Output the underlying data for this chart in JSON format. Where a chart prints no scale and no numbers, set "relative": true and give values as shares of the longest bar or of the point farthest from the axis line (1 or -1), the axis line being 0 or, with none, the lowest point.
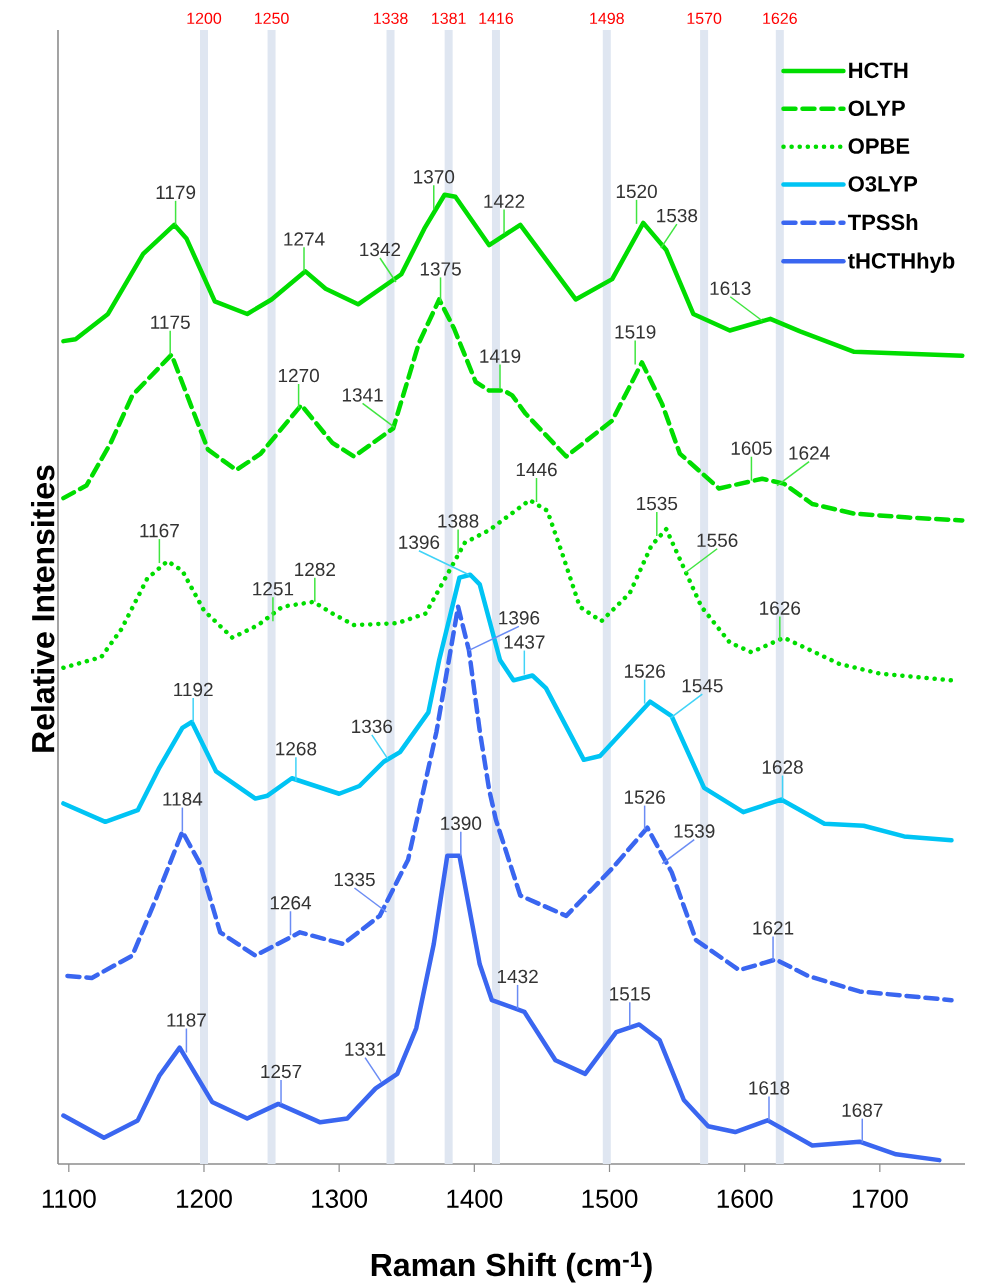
{
  "chart_data": {
    "type": "line",
    "relative": true,
    "xlabel": "Raman Shift (cm$^{-1}$)",
    "ylabel": "Relative Intensities",
    "xlim": [
      1092,
      1763
    ],
    "xticks": [
      1100,
      1200,
      1300,
      1400,
      1500,
      1600,
      1700
    ],
    "legend": "top right",
    "series": [
      {
        "name": "HCTH",
        "color": "#00dd00",
        "line_style": "solid",
        "x": [
          1096,
          1105,
          1129,
          1155,
          1178,
          1187,
          1208,
          1232,
          1250,
          1275,
          1290,
          1314,
          1346,
          1363,
          1378,
          1386,
          1411,
          1434,
          1475,
          1502,
          1525,
          1542,
          1562,
          1589,
          1619,
          1641,
          1681,
          1721,
          1761
        ],
        "values": [
          0.849,
          0.851,
          0.877,
          0.939,
          0.969,
          0.955,
          0.89,
          0.877,
          0.892,
          0.921,
          0.903,
          0.887,
          0.918,
          0.965,
          1.0,
          0.998,
          0.948,
          0.969,
          0.892,
          0.913,
          0.971,
          0.943,
          0.877,
          0.86,
          0.872,
          0.859,
          0.838,
          0.836,
          0.834
        ]
      },
      {
        "name": "OLYP",
        "color": "#00dd00",
        "line_style": "dashed",
        "x": [
          1096,
          1113,
          1131,
          1147,
          1176,
          1190,
          1203,
          1224,
          1242,
          1272,
          1295,
          1311,
          1340,
          1359,
          1374,
          1385,
          1401,
          1411,
          1422,
          1428,
          1438,
          1468,
          1502,
          1524,
          1539,
          1552,
          1581,
          1613,
          1629,
          1650,
          1681,
          1721,
          1761
        ],
        "values": [
          0.687,
          0.7,
          0.744,
          0.793,
          0.835,
          0.784,
          0.737,
          0.716,
          0.733,
          0.783,
          0.744,
          0.73,
          0.759,
          0.847,
          0.892,
          0.862,
          0.807,
          0.798,
          0.798,
          0.793,
          0.774,
          0.73,
          0.767,
          0.827,
          0.784,
          0.733,
          0.697,
          0.707,
          0.702,
          0.681,
          0.671,
          0.667,
          0.664
        ]
      },
      {
        "name": "OPBE",
        "color": "#00dd00",
        "line_style": "dotted",
        "x": [
          1096,
          1124,
          1139,
          1158,
          1173,
          1184,
          1200,
          1221,
          1240,
          1258,
          1281,
          1295,
          1311,
          1343,
          1364,
          1393,
          1411,
          1441,
          1454,
          1465,
          1478,
          1494,
          1515,
          1531,
          1542,
          1555,
          1568,
          1589,
          1605,
          1629,
          1670,
          1700,
          1753
        ],
        "values": [
          0.512,
          0.523,
          0.552,
          0.604,
          0.622,
          0.612,
          0.571,
          0.543,
          0.556,
          0.575,
          0.58,
          0.568,
          0.556,
          0.558,
          0.568,
          0.641,
          0.654,
          0.685,
          0.674,
          0.63,
          0.575,
          0.56,
          0.589,
          0.638,
          0.655,
          0.615,
          0.575,
          0.538,
          0.528,
          0.543,
          0.516,
          0.506,
          0.499
        ]
      },
      {
        "name": "O3LYP",
        "color": "#00c4f4",
        "line_style": "solid",
        "x": [
          1096,
          1127,
          1151,
          1167,
          1184,
          1191,
          1209,
          1238,
          1247,
          1265,
          1300,
          1315,
          1333,
          1345,
          1366,
          1374,
          1389,
          1397,
          1404,
          1419,
          1429,
          1443,
          1453,
          1481,
          1493,
          1530,
          1546,
          1570,
          1599,
          1627,
          1659,
          1688,
          1718,
          1753
        ],
        "values": [
          0.372,
          0.353,
          0.365,
          0.409,
          0.45,
          0.456,
          0.405,
          0.377,
          0.38,
          0.398,
          0.382,
          0.39,
          0.415,
          0.425,
          0.466,
          0.52,
          0.605,
          0.608,
          0.598,
          0.52,
          0.499,
          0.504,
          0.491,
          0.417,
          0.421,
          0.477,
          0.462,
          0.388,
          0.363,
          0.376,
          0.351,
          0.349,
          0.338,
          0.334
        ]
      },
      {
        "name": "TPSSh",
        "color": "#3a66f0",
        "line_style": "dashed",
        "x": [
          1099,
          1117,
          1147,
          1164,
          1184,
          1197,
          1212,
          1238,
          1271,
          1303,
          1330,
          1351,
          1372,
          1388,
          1396,
          1404,
          1411,
          1416,
          1434,
          1468,
          1502,
          1528,
          1546,
          1564,
          1596,
          1623,
          1647,
          1685,
          1753
        ],
        "values": [
          0.194,
          0.192,
          0.215,
          0.272,
          0.343,
          0.31,
          0.239,
          0.215,
          0.239,
          0.227,
          0.256,
          0.314,
          0.446,
          0.575,
          0.53,
          0.447,
          0.386,
          0.355,
          0.277,
          0.256,
          0.305,
          0.347,
          0.301,
          0.231,
          0.2,
          0.211,
          0.194,
          0.178,
          0.169
        ]
      },
      {
        "name": "tHCTHhyb",
        "color": "#3a66f0",
        "line_style": "solid",
        "x": [
          1096,
          1126,
          1151,
          1167,
          1182,
          1206,
          1232,
          1255,
          1286,
          1306,
          1327,
          1343,
          1357,
          1370,
          1380,
          1389,
          1404,
          1413,
          1437,
          1460,
          1482,
          1505,
          1522,
          1537,
          1555,
          1573,
          1593,
          1617,
          1650,
          1685,
          1712,
          1744
        ],
        "values": [
          0.05,
          0.027,
          0.045,
          0.091,
          0.12,
          0.064,
          0.047,
          0.062,
          0.043,
          0.047,
          0.078,
          0.093,
          0.14,
          0.227,
          0.318,
          0.318,
          0.206,
          0.169,
          0.157,
          0.107,
          0.093,
          0.136,
          0.144,
          0.128,
          0.066,
          0.039,
          0.033,
          0.045,
          0.019,
          0.023,
          0.01,
          0.004
        ]
      }
    ],
    "ref_lines": [
      {
        "axis": "x",
        "value": 1200,
        "label": "1200",
        "color": "#dfe6f1"
      },
      {
        "axis": "x",
        "value": 1250,
        "label": "1250",
        "color": "#dfe6f1"
      },
      {
        "axis": "x",
        "value": 1338,
        "label": "1338",
        "color": "#dfe6f1"
      },
      {
        "axis": "x",
        "value": 1381,
        "label": "1381",
        "color": "#dfe6f1"
      },
      {
        "axis": "x",
        "value": 1416,
        "label": "1416",
        "color": "#dfe6f1"
      },
      {
        "axis": "x",
        "value": 1498,
        "label": "1498",
        "color": "#dfe6f1"
      },
      {
        "axis": "x",
        "value": 1570,
        "label": "1570",
        "color": "#dfe6f1"
      },
      {
        "axis": "x",
        "value": 1626,
        "label": "1626",
        "color": "#dfe6f1"
      }
    ],
    "annotations": [
      {
        "text": "1179",
        "x": 1179,
        "y": 0.969
      },
      {
        "text": "1274",
        "x": 1274,
        "y": 0.921
      },
      {
        "text": "1342",
        "x": 1342,
        "y": 0.91
      },
      {
        "text": "1370",
        "x": 1370,
        "y": 0.985
      },
      {
        "text": "1422",
        "x": 1422,
        "y": 0.96
      },
      {
        "text": "1520",
        "x": 1520,
        "y": 0.97
      },
      {
        "text": "1538",
        "x": 1538,
        "y": 0.945
      },
      {
        "text": "1613",
        "x": 1613,
        "y": 0.87
      },
      {
        "text": "1175",
        "x": 1175,
        "y": 0.835
      },
      {
        "text": "1270",
        "x": 1270,
        "y": 0.78
      },
      {
        "text": "1341",
        "x": 1341,
        "y": 0.76
      },
      {
        "text": "1375",
        "x": 1375,
        "y": 0.89
      },
      {
        "text": "1419",
        "x": 1419,
        "y": 0.8
      },
      {
        "text": "1519",
        "x": 1519,
        "y": 0.825
      },
      {
        "text": "1605",
        "x": 1605,
        "y": 0.705
      },
      {
        "text": "1624",
        "x": 1624,
        "y": 0.7
      },
      {
        "text": "1167",
        "x": 1167,
        "y": 0.62
      },
      {
        "text": "1251",
        "x": 1251,
        "y": 0.56
      },
      {
        "text": "1282",
        "x": 1282,
        "y": 0.58
      },
      {
        "text": "1388",
        "x": 1388,
        "y": 0.63
      },
      {
        "text": "1446",
        "x": 1446,
        "y": 0.683
      },
      {
        "text": "1535",
        "x": 1535,
        "y": 0.648
      },
      {
        "text": "1556",
        "x": 1556,
        "y": 0.61
      },
      {
        "text": "1626",
        "x": 1626,
        "y": 0.54
      },
      {
        "text": "1192",
        "x": 1192,
        "y": 0.456
      },
      {
        "text": "1268",
        "x": 1268,
        "y": 0.395
      },
      {
        "text": "1336",
        "x": 1336,
        "y": 0.418
      },
      {
        "text": "1396",
        "x": 1396,
        "y": 0.608
      },
      {
        "text": "1437",
        "x": 1437,
        "y": 0.505
      },
      {
        "text": "1526",
        "x": 1526,
        "y": 0.475
      },
      {
        "text": "1545",
        "x": 1545,
        "y": 0.46
      },
      {
        "text": "1628",
        "x": 1628,
        "y": 0.376
      },
      {
        "text": "1184",
        "x": 1184,
        "y": 0.343
      },
      {
        "text": "1264",
        "x": 1264,
        "y": 0.236
      },
      {
        "text": "1335",
        "x": 1335,
        "y": 0.26
      },
      {
        "text": "1396",
        "x": 1396,
        "y": 0.53
      },
      {
        "text": "1526",
        "x": 1526,
        "y": 0.345
      },
      {
        "text": "1539",
        "x": 1539,
        "y": 0.31
      },
      {
        "text": "1621",
        "x": 1621,
        "y": 0.21
      },
      {
        "text": "1187",
        "x": 1187,
        "y": 0.115
      },
      {
        "text": "1257",
        "x": 1257,
        "y": 0.062
      },
      {
        "text": "1331",
        "x": 1331,
        "y": 0.085
      },
      {
        "text": "1390",
        "x": 1390,
        "y": 0.318
      },
      {
        "text": "1432",
        "x": 1432,
        "y": 0.16
      },
      {
        "text": "1515",
        "x": 1515,
        "y": 0.142
      },
      {
        "text": "1618",
        "x": 1618,
        "y": 0.045
      },
      {
        "text": "1687",
        "x": 1687,
        "y": 0.022
      }
    ]
  }
}
